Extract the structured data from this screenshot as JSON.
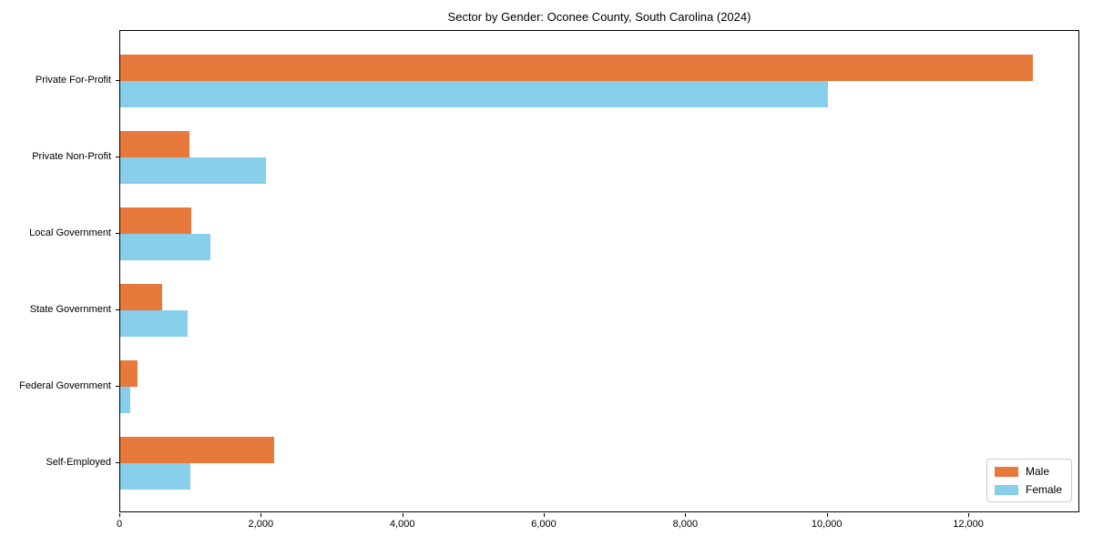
{
  "chart_data": {
    "type": "bar",
    "orientation": "horizontal",
    "title": "Sector by Gender: Oconee County, South Carolina (2024)",
    "categories": [
      "Private For-Profit",
      "Private Non-Profit",
      "Local Government",
      "State Government",
      "Federal Government",
      "Self-Employed"
    ],
    "series": [
      {
        "name": "Male",
        "color": "#e8793d",
        "values": [
          12900,
          975,
          1000,
          590,
          250,
          2170
        ]
      },
      {
        "name": "Female",
        "color": "#87ceeb",
        "values": [
          10000,
          2065,
          1270,
          955,
          140,
          985
        ]
      }
    ],
    "xlim": [
      0,
      13570
    ],
    "x_ticks": [
      {
        "value": 0,
        "label": "0"
      },
      {
        "value": 2000,
        "label": "2,000"
      },
      {
        "value": 4000,
        "label": "4,000"
      },
      {
        "value": 6000,
        "label": "6,000"
      },
      {
        "value": 8000,
        "label": "8,000"
      },
      {
        "value": 10000,
        "label": "10,000"
      },
      {
        "value": 12000,
        "label": "12,000"
      }
    ],
    "legend_position": "lower right",
    "grid": false,
    "xlabel": "",
    "ylabel": ""
  }
}
